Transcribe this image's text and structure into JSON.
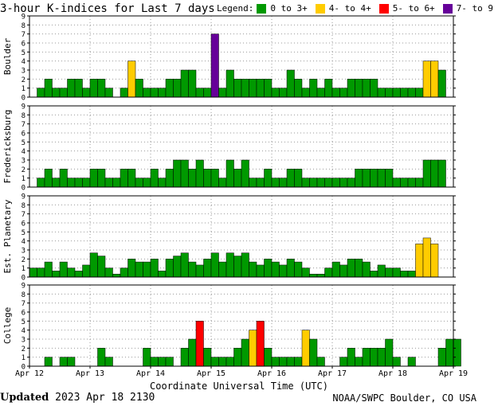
{
  "chart_data": {
    "type": "bar",
    "title": "3-hour K-indices for Last 7 days",
    "xlabel": "Coordinate Universal Time (UTC)",
    "ylim": [
      0,
      9
    ],
    "y_ticks": [
      "0",
      "1",
      "2",
      "3",
      "4",
      "5",
      "6",
      "7",
      "8",
      "9"
    ],
    "x_ticks": [
      "Apr 12",
      "Apr 13",
      "Apr 14",
      "Apr 15",
      "Apr 16",
      "Apr 17",
      "Apr 18",
      "Apr 19"
    ],
    "legend": {
      "label": "Legend:",
      "items": [
        {
          "label": "0 to 3+",
          "color": "#009900"
        },
        {
          "label": "4- to 4+",
          "color": "#ffcc00"
        },
        {
          "label": "5- to 6+",
          "color": "#ff0000"
        },
        {
          "label": "7- to 9",
          "color": "#660099"
        }
      ]
    },
    "panels": [
      {
        "name": "Boulder",
        "values": [
          0,
          1,
          2,
          1,
          1,
          2,
          2,
          1,
          2,
          2,
          1,
          0,
          1,
          4,
          2,
          1,
          1,
          1,
          2,
          2,
          3,
          3,
          1,
          1,
          7,
          1,
          3,
          2,
          2,
          2,
          2,
          2,
          1,
          1,
          3,
          2,
          1,
          2,
          1,
          2,
          1,
          1,
          2,
          2,
          2,
          2,
          1,
          1,
          1,
          1,
          1,
          1,
          4,
          4,
          3,
          0
        ]
      },
      {
        "name": "Fredericksburg",
        "values": [
          0,
          1,
          2,
          1,
          2,
          1,
          1,
          1,
          2,
          2,
          1,
          1,
          2,
          2,
          1,
          1,
          2,
          1,
          2,
          3,
          3,
          2,
          3,
          2,
          2,
          1,
          3,
          2,
          3,
          1,
          1,
          2,
          1,
          1,
          2,
          2,
          1,
          1,
          1,
          1,
          1,
          1,
          1,
          2,
          2,
          2,
          2,
          2,
          1,
          1,
          1,
          1,
          3,
          3,
          3,
          0
        ]
      },
      {
        "name": "Est. Planetary",
        "values": [
          1,
          1,
          1.67,
          0.67,
          1.67,
          1,
          0.67,
          1.33,
          2.67,
          2.33,
          1,
          0.33,
          1,
          2,
          1.67,
          1.67,
          2,
          0.67,
          2,
          2.33,
          2.67,
          1.67,
          1.33,
          2,
          2.67,
          1.67,
          2.67,
          2.33,
          2.67,
          1.67,
          1.33,
          2,
          1.67,
          1.33,
          2,
          1.67,
          1,
          0.33,
          0.33,
          1,
          1.67,
          1.33,
          2,
          2,
          1.67,
          0.67,
          1.33,
          1,
          1,
          0.67,
          0.67,
          3.67,
          4.33,
          3.67
        ]
      },
      {
        "name": "College",
        "values": [
          0,
          0,
          1,
          0,
          1,
          1,
          0,
          0,
          0,
          2,
          1,
          0,
          0,
          0,
          0,
          2,
          1,
          1,
          1,
          0,
          2,
          3,
          5,
          2,
          1,
          1,
          1,
          2,
          3,
          4,
          5,
          2,
          1,
          1,
          1,
          1,
          4,
          3,
          1,
          0,
          0,
          1,
          2,
          1,
          2,
          2,
          2,
          3,
          1,
          0,
          1,
          0,
          0,
          0,
          2,
          3,
          3,
          0
        ]
      }
    ]
  },
  "footer": {
    "updated_label": "Updated",
    "updated_value": "2023 Apr 18 2130",
    "source": "NOAA/SWPC Boulder, CO USA"
  }
}
